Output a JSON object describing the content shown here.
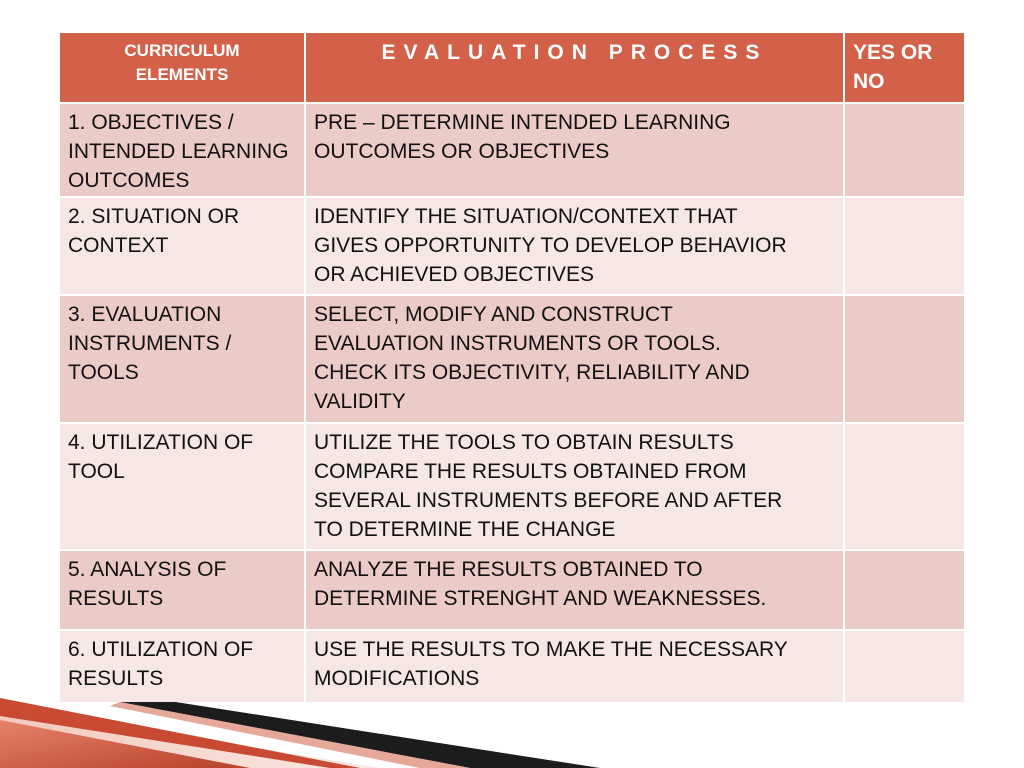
{
  "table": {
    "headers": {
      "col1": "CURRICULUM\nELEMENTS",
      "col2": "EVALUATION PROCESS",
      "col3": "YES OR\nNO"
    },
    "rows": [
      {
        "element": "1. OBJECTIVES /\nINTENDED LEARNING\nOUTCOMES",
        "process": "PRE – DETERMINE INTENDED LEARNING\nOUTCOMES OR OBJECTIVES",
        "yes_no": ""
      },
      {
        "element": "2. SITUATION OR\nCONTEXT",
        "process": "IDENTIFY THE SITUATION/CONTEXT THAT\nGIVES OPPORTUNITY TO DEVELOP BEHAVIOR\nOR ACHIEVED OBJECTIVES",
        "yes_no": ""
      },
      {
        "element": "3. EVALUATION\nINSTRUMENTS /\nTOOLS",
        "process": "SELECT, MODIFY AND CONSTRUCT\nEVALUATION INSTRUMENTS OR TOOLS.\nCHECK ITS OBJECTIVITY, RELIABILITY AND\nVALIDITY",
        "yes_no": ""
      },
      {
        "element": "4. UTILIZATION OF\nTOOL",
        "process": "UTILIZE THE TOOLS TO OBTAIN RESULTS\nCOMPARE THE RESULTS OBTAINED FROM\nSEVERAL INSTRUMENTS BEFORE AND AFTER\nTO DETERMINE THE CHANGE",
        "yes_no": ""
      },
      {
        "element": "5. ANALYSIS OF\nRESULTS",
        "process": "ANALYZE THE RESULTS OBTAINED TO\nDETERMINE STRENGHT AND WEAKNESSES.",
        "yes_no": ""
      },
      {
        "element": "6. UTILIZATION OF\nRESULTS",
        "process": "USE THE RESULTS TO MAKE THE NECESSARY\nMODIFICATIONS",
        "yes_no": ""
      }
    ]
  },
  "colors": {
    "header_bg": "#d3614a",
    "row_odd_bg": "#ebcbc6",
    "row_even_bg": "#f6e7e4",
    "accent_dark": "#1a1a1a",
    "accent_red": "#c0392b"
  }
}
